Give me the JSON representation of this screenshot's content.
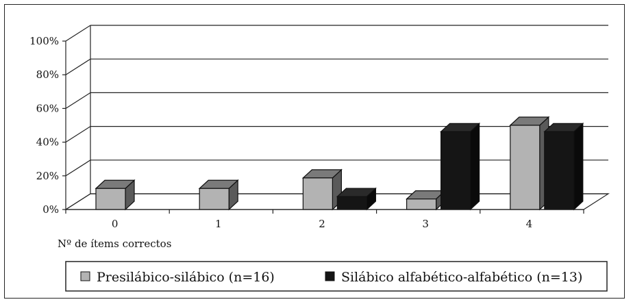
{
  "chart_data": {
    "type": "bar",
    "title": "",
    "xlabel": "Nº de ítems correctos",
    "ylabel": "",
    "categories": [
      "0",
      "1",
      "2",
      "3",
      "4"
    ],
    "y_ticks": [
      "0%",
      "20%",
      "40%",
      "60%",
      "80%",
      "100%"
    ],
    "ylim": [
      0,
      100
    ],
    "grid": true,
    "legend_position": "bottom",
    "series": [
      {
        "name": "Presilábico-silábico (n=16)",
        "values": [
          12.5,
          12.5,
          18.75,
          6.25,
          50
        ],
        "color": "#b3b3b3",
        "top_color": "#7a7a7a",
        "side_color": "#5a5a5a"
      },
      {
        "name": "Silábico alfabético-alfabético (n=13)",
        "values": [
          0,
          0,
          7.7,
          46.2,
          46.2
        ],
        "color": "#151515",
        "top_color": "#2a2a2a",
        "side_color": "#0a0a0a"
      }
    ]
  }
}
